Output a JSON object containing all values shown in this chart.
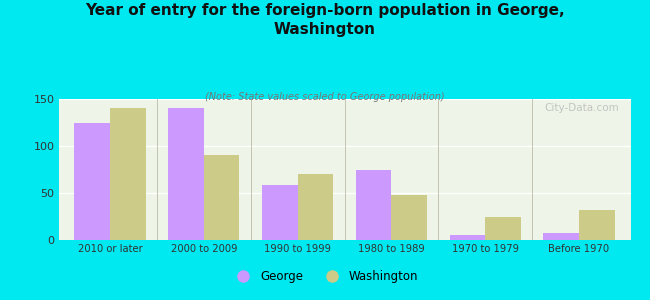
{
  "title": "Year of entry for the foreign-born population in George,\nWashington",
  "subtitle": "(Note: State values scaled to George population)",
  "categories": [
    "2010 or later",
    "2000 to 2009",
    "1990 to 1999",
    "1980 to 1989",
    "1970 to 1979",
    "Before 1970"
  ],
  "george_values": [
    125,
    140,
    58,
    75,
    5,
    7
  ],
  "washington_values": [
    140,
    90,
    70,
    48,
    25,
    32
  ],
  "george_color": "#cc99ff",
  "washington_color": "#cccc88",
  "background_outer": "#00e8f0",
  "background_inner": "#eef5e8",
  "ylim": [
    0,
    150
  ],
  "yticks": [
    0,
    50,
    100,
    150
  ],
  "bar_width": 0.38,
  "legend_george": "George",
  "legend_washington": "Washington",
  "watermark": "City-Data.com"
}
